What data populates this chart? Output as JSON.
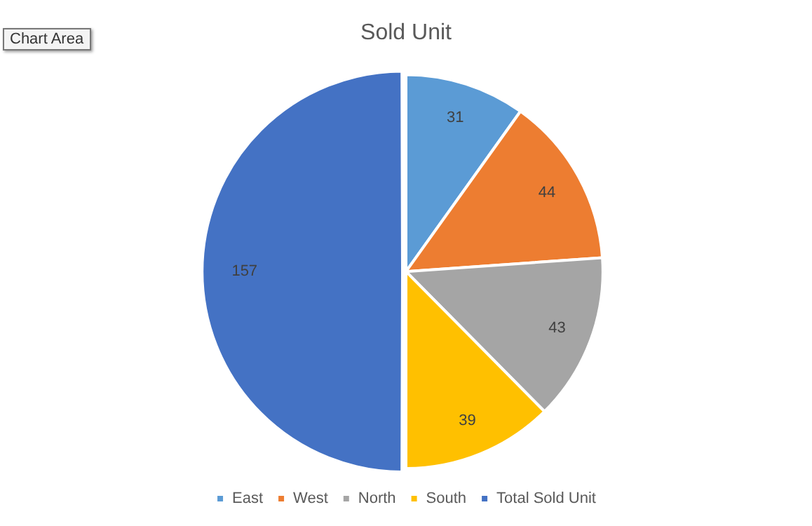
{
  "chart_data": {
    "type": "pie",
    "title": "Sold Unit",
    "categories": [
      "East",
      "West",
      "North",
      "South",
      "Total Sold Unit"
    ],
    "values": [
      31,
      44,
      43,
      39,
      157
    ],
    "colors": [
      "#5b9bd5",
      "#ed7d31",
      "#a5a5a5",
      "#ffc000",
      "#4472c4"
    ],
    "data_labels": true,
    "legend": "bottom",
    "annotations": [
      "Chart Area"
    ]
  }
}
